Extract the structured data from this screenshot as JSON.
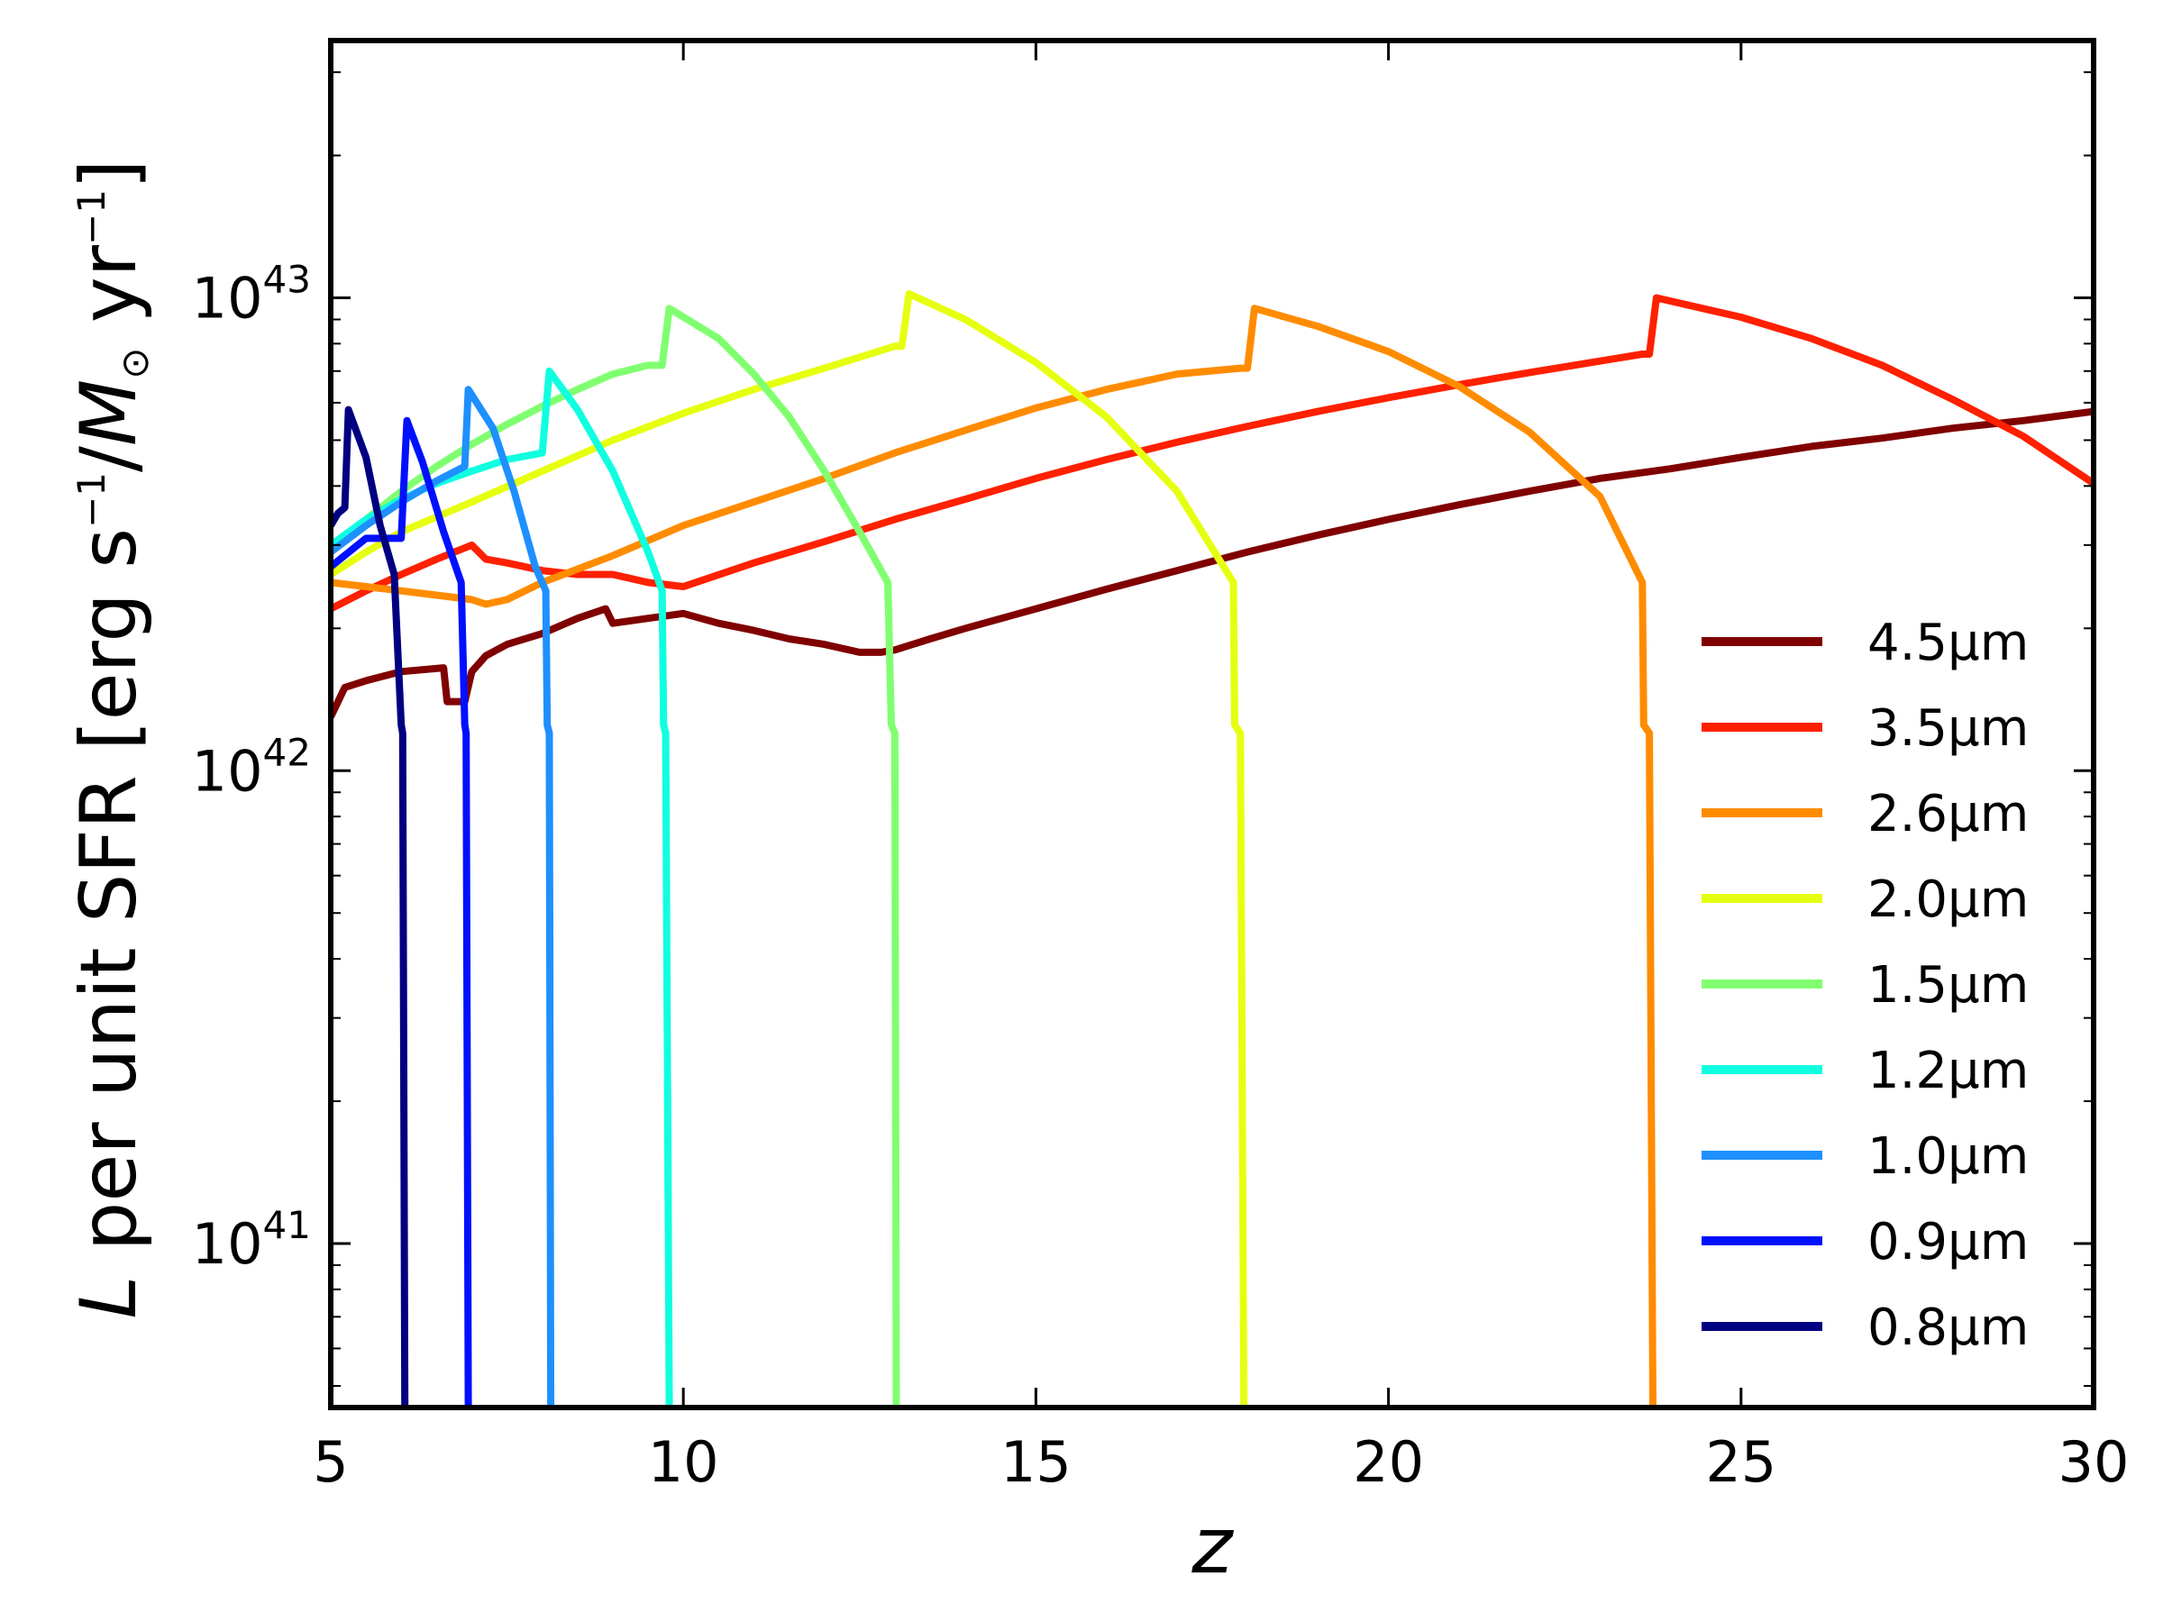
{
  "chart_data": {
    "type": "line",
    "xlabel": "z",
    "ylabel_parts": {
      "italic_symbol": "L",
      "text": " per unit SFR [erg s",
      "exp1": "−1",
      "mid": "/",
      "msun": "M",
      "sun_sub": "⊙",
      "yr": " yr",
      "exp2": "−1",
      "close": "]"
    },
    "xlim": [
      5,
      30
    ],
    "ylim": [
      4.5e+40,
      3.5e+43
    ],
    "yscale": "log",
    "grid": false,
    "legend_position": "lower-right",
    "x_ticks": [
      {
        "value": 5,
        "label": "5"
      },
      {
        "value": 10,
        "label": "10"
      },
      {
        "value": 15,
        "label": "15"
      },
      {
        "value": 20,
        "label": "20"
      },
      {
        "value": 25,
        "label": "25"
      },
      {
        "value": 30,
        "label": "30"
      }
    ],
    "y_ticks": [
      {
        "value": 1e+41,
        "base": "10",
        "exp": "41"
      },
      {
        "value": 1e+42,
        "base": "10",
        "exp": "42"
      },
      {
        "value": 1e+43,
        "base": "10",
        "exp": "43"
      }
    ],
    "series": [
      {
        "name": "4.5μm",
        "color": "#800000",
        "x": [
          5.0,
          5.2,
          5.5,
          6.0,
          6.6,
          6.65,
          6.9,
          7.0,
          7.2,
          7.5,
          8.0,
          8.5,
          8.9,
          9.0,
          9.5,
          10.0,
          10.5,
          11.0,
          11.5,
          12.0,
          12.5,
          12.8,
          13.0,
          13.5,
          14.0,
          15.0,
          16.0,
          17.0,
          18.0,
          19.0,
          20.0,
          21.0,
          22.0,
          23.0,
          24.0,
          25.0,
          26.0,
          27.0,
          28.0,
          29.0,
          30.0
        ],
        "y": [
          1.3e+42,
          1.5e+42,
          1.55e+42,
          1.62e+42,
          1.65e+42,
          1.4e+42,
          1.4e+42,
          1.62e+42,
          1.75e+42,
          1.85e+42,
          1.95e+42,
          2.1e+42,
          2.2e+42,
          2.05e+42,
          2.1e+42,
          2.15e+42,
          2.05e+42,
          1.98e+42,
          1.9e+42,
          1.85e+42,
          1.78e+42,
          1.78e+42,
          1.8e+42,
          1.9e+42,
          2e+42,
          2.2e+42,
          2.42e+42,
          2.65e+42,
          2.9e+42,
          3.15e+42,
          3.4e+42,
          3.65e+42,
          3.9e+42,
          4.15e+42,
          4.35e+42,
          4.6e+42,
          4.85e+42,
          5.05e+42,
          5.3e+42,
          5.5e+42,
          5.75e+42
        ]
      },
      {
        "name": "3.5μm",
        "color": "#ff2000",
        "x": [
          5.0,
          5.5,
          6.0,
          6.5,
          7.0,
          7.2,
          7.5,
          8.0,
          8.5,
          9.0,
          9.5,
          10.0,
          11.0,
          12.0,
          13.0,
          14.0,
          15.0,
          16.0,
          17.0,
          18.0,
          19.0,
          20.0,
          21.0,
          22.0,
          23.0,
          23.6,
          23.7,
          23.8,
          25.0,
          26.0,
          27.0,
          28.0,
          29.0,
          30.0
        ],
        "y": [
          2.2e+42,
          2.4e+42,
          2.6e+42,
          2.8e+42,
          3e+42,
          2.8e+42,
          2.75e+42,
          2.65e+42,
          2.6e+42,
          2.6e+42,
          2.5e+42,
          2.45e+42,
          2.75e+42,
          3.05e+42,
          3.4e+42,
          3.75e+42,
          4.15e+42,
          4.55e+42,
          4.95e+42,
          5.35e+42,
          5.75e+42,
          6.15e+42,
          6.55e+42,
          6.95e+42,
          7.35e+42,
          7.6e+42,
          7.6e+42,
          1e+43,
          9.1e+42,
          8.2e+42,
          7.2e+42,
          6.1e+42,
          5.1e+42,
          4.05e+42
        ]
      },
      {
        "name": "2.6μm",
        "color": "#ff8c00",
        "x": [
          5.0,
          5.5,
          6.0,
          6.5,
          7.0,
          7.2,
          7.5,
          8.0,
          9.0,
          10.0,
          11.0,
          12.0,
          13.0,
          14.0,
          15.0,
          16.0,
          17.0,
          17.9,
          18.0,
          18.1,
          19.0,
          20.0,
          21.0,
          22.0,
          23.0,
          23.6,
          23.62,
          23.7,
          23.75
        ],
        "y": [
          2.5e+42,
          2.45e+42,
          2.4e+42,
          2.35e+42,
          2.3e+42,
          2.25e+42,
          2.3e+42,
          2.5e+42,
          2.85e+42,
          3.3e+42,
          3.7e+42,
          4.15e+42,
          4.7e+42,
          5.25e+42,
          5.85e+42,
          6.4e+42,
          6.9e+42,
          7.1e+42,
          7.1e+42,
          9.5e+42,
          8.7e+42,
          7.7e+42,
          6.5e+42,
          5.2e+42,
          3.8e+42,
          2.5e+42,
          1.25e+42,
          1.2e+42,
          4.5e+40
        ]
      },
      {
        "name": "2.0μm",
        "color": "#e6ff10",
        "x": [
          5.0,
          5.5,
          6.0,
          7.0,
          8.0,
          9.0,
          10.0,
          11.0,
          12.0,
          13.0,
          13.1,
          13.2,
          14.0,
          15.0,
          16.0,
          17.0,
          17.8,
          17.82,
          17.9,
          17.95
        ],
        "y": [
          2.6e+42,
          2.9e+42,
          3.2e+42,
          3.7e+42,
          4.3e+42,
          5e+42,
          5.7e+42,
          6.4e+42,
          7.1e+42,
          7.9e+42,
          7.9e+42,
          1.02e+43,
          9e+42,
          7.3e+42,
          5.6e+42,
          3.9e+42,
          2.5e+42,
          1.25e+42,
          1.2e+42,
          4.5e+40
        ]
      },
      {
        "name": "1.5μm",
        "color": "#80ff70",
        "x": [
          5.0,
          5.5,
          6.0,
          6.5,
          7.0,
          7.5,
          8.0,
          8.5,
          9.0,
          9.5,
          9.7,
          9.8,
          10.5,
          11.0,
          11.5,
          12.0,
          12.5,
          12.9,
          12.95,
          13.0,
          13.02
        ],
        "y": [
          2.9e+42,
          3.4e+42,
          3.9e+42,
          4.4e+42,
          4.9e+42,
          5.4e+42,
          5.9e+42,
          6.4e+42,
          6.9e+42,
          7.2e+42,
          7.2e+42,
          9.5e+42,
          8.2e+42,
          6.9e+42,
          5.6e+42,
          4.3e+42,
          3.2e+42,
          2.5e+42,
          1.25e+42,
          1.2e+42,
          4.5e+40
        ]
      },
      {
        "name": "1.2μm",
        "color": "#10ffe0",
        "x": [
          5.0,
          5.5,
          6.0,
          6.5,
          7.0,
          7.5,
          8.0,
          8.1,
          8.5,
          9.0,
          9.5,
          9.7,
          9.72,
          9.75,
          9.8
        ],
        "y": [
          3e+42,
          3.4e+42,
          3.75e+42,
          4.05e+42,
          4.3e+42,
          4.55e+42,
          4.7e+42,
          7e+42,
          5.8e+42,
          4.3e+42,
          2.9e+42,
          2.4e+42,
          1.25e+42,
          1.2e+42,
          4.5e+40
        ]
      },
      {
        "name": "1.0μm",
        "color": "#1e90ff",
        "x": [
          5.0,
          5.5,
          6.0,
          6.5,
          6.9,
          6.95,
          7.3,
          7.6,
          7.9,
          8.05,
          8.07,
          8.1,
          8.12
        ],
        "y": [
          2.9e+42,
          3.3e+42,
          3.7e+42,
          4.1e+42,
          4.4e+42,
          6.4e+42,
          5.3e+42,
          3.9e+42,
          2.7e+42,
          2.4e+42,
          1.25e+42,
          1.2e+42,
          4.5e+40
        ]
      },
      {
        "name": "0.9μm",
        "color": "#0010ff",
        "x": [
          5.0,
          5.5,
          6.0,
          6.08,
          6.3,
          6.6,
          6.85,
          6.9,
          6.92,
          6.95
        ],
        "y": [
          2.7e+42,
          3.1e+42,
          3.1e+42,
          5.5e+42,
          4.5e+42,
          3.2e+42,
          2.5e+42,
          1.25e+42,
          1.2e+42,
          4.5e+40
        ]
      },
      {
        "name": "0.8μm",
        "color": "#000080",
        "x": [
          5.0,
          5.1,
          5.2,
          5.25,
          5.5,
          5.7,
          5.9,
          6.0,
          6.02,
          6.05
        ],
        "y": [
          3.3e+42,
          3.5e+42,
          3.6e+42,
          5.8e+42,
          4.6e+42,
          3.3e+42,
          2.6e+42,
          1.25e+42,
          1.2e+42,
          4.5e+40
        ]
      }
    ]
  }
}
